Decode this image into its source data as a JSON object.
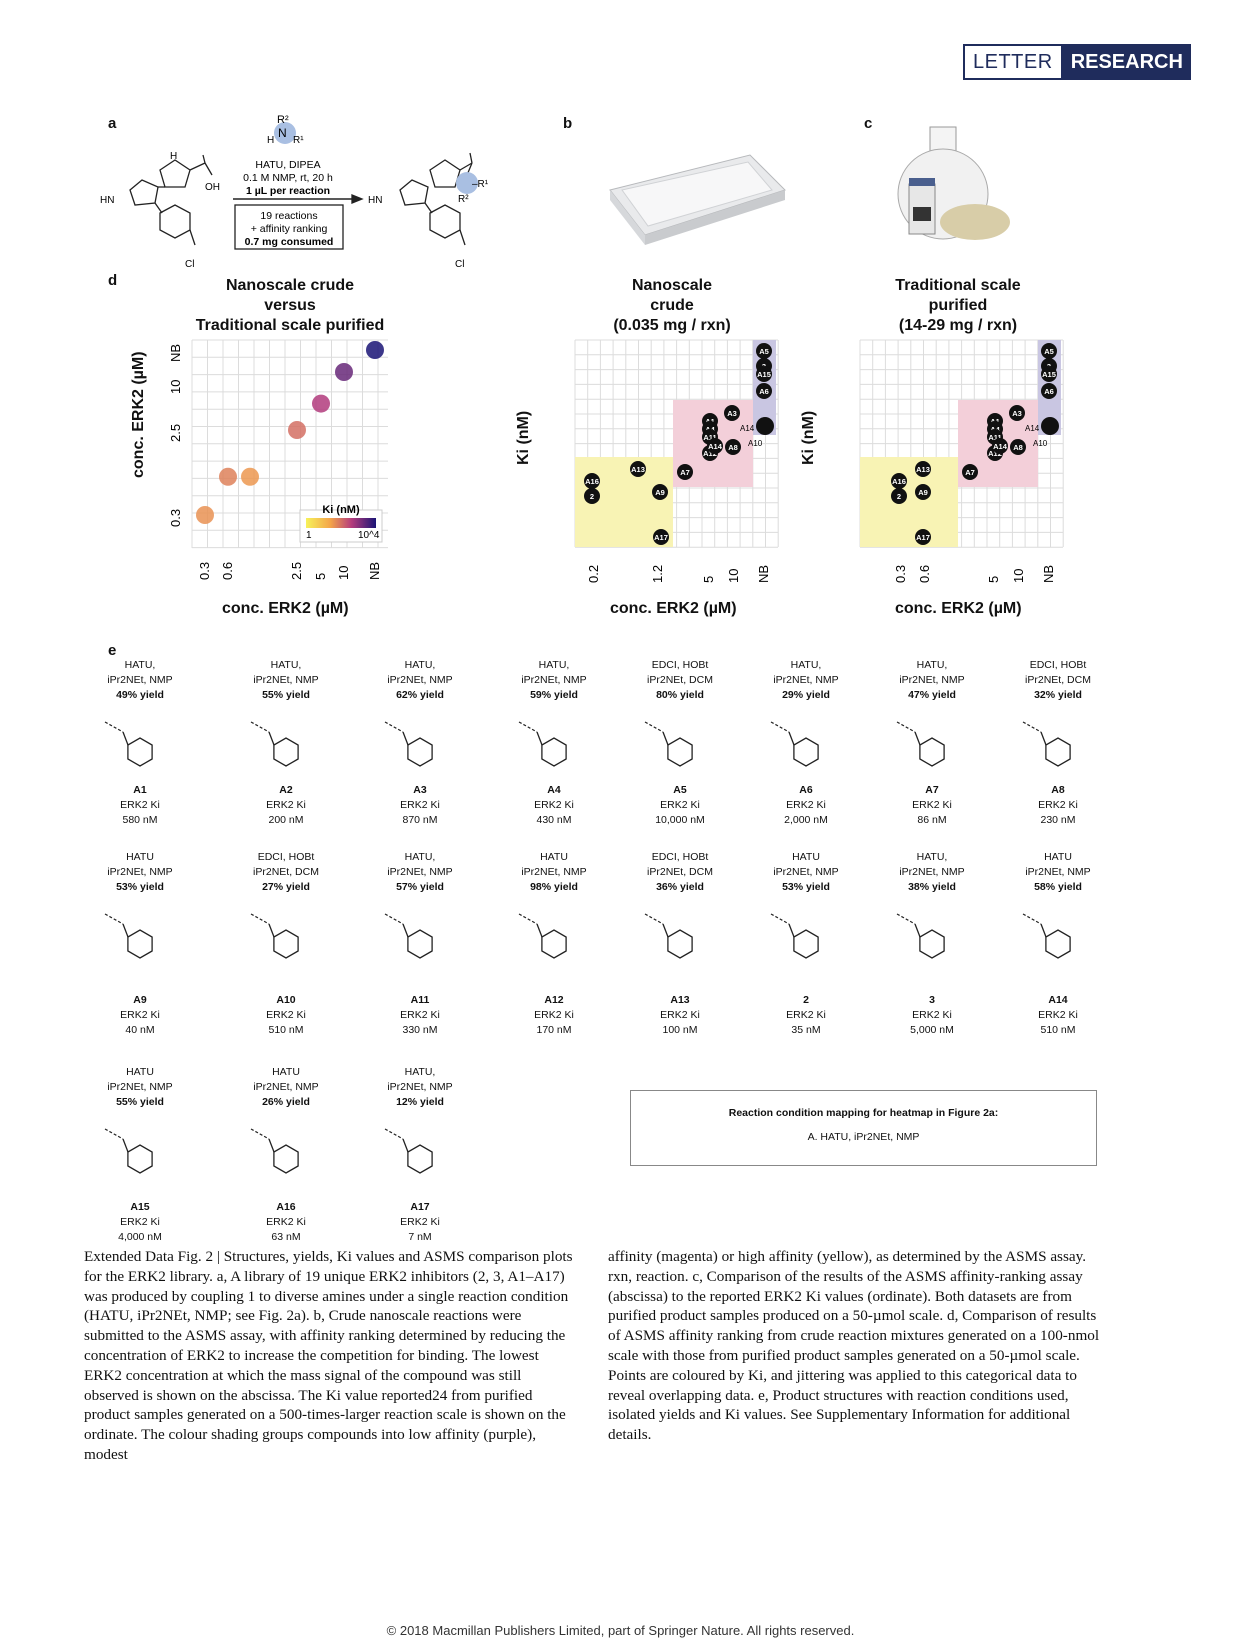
{
  "header": {
    "letter": "LETTER",
    "research": "RESEARCH"
  },
  "panel_labels": {
    "a": "a",
    "b": "b",
    "c": "c",
    "d": "d",
    "e": "e"
  },
  "scheme": {
    "reagent_top": "HATU, DIPEA",
    "reagent_mid": "0.1 M NMP, rt, 20 h",
    "reagent_bold": "1 µL per reaction",
    "box_line1": "19 reactions",
    "box_line2": "+ affinity ranking",
    "box_line3": "0.7 mg consumed"
  },
  "plot_titles": {
    "d": [
      "Nanoscale crude",
      "versus",
      "Traditional scale purified"
    ],
    "b": [
      "Nanoscale",
      "crude",
      "(0.035 mg / rxn)"
    ],
    "c": [
      "Traditional scale",
      "purified",
      "(14-29 mg / rxn)"
    ]
  },
  "axis_labels": {
    "d_y": "conc. ERK2 (µM)",
    "d_x": "conc. ERK2 (µM)",
    "b_y": "Ki (nM)",
    "b_x": "conc. ERK2 (µM)",
    "c_y": "Ki (nM)",
    "c_x": "conc. ERK2 (µM)",
    "legend_title": "Ki (nM)",
    "legend_min": "1",
    "legend_max": "10^4"
  },
  "chart_data": [
    {
      "type": "scatter",
      "title": "Nanoscale crude versus Traditional scale purified",
      "xlabel": "conc. ERK2 (µM)",
      "ylabel": "conc. ERK2 (µM)",
      "x_ticks": [
        "0.3",
        "0.6",
        "2.5",
        "5",
        "10",
        "NB"
      ],
      "y_ticks": [
        "0.3",
        "2.5",
        "10",
        "NB"
      ],
      "points": [
        {
          "x": "0.3",
          "y": "0.3",
          "ki": 40
        },
        {
          "x": "0.6",
          "y": "0.6",
          "ki": 63
        },
        {
          "x": "0.6",
          "y": "0.6",
          "ki": 35
        },
        {
          "x": "2.5",
          "y": "2.5",
          "ki": 100
        },
        {
          "x": "5",
          "y": "5",
          "ki": 430
        },
        {
          "x": "10",
          "y": "10",
          "ki": 2000
        },
        {
          "x": "NB",
          "y": "NB",
          "ki": 10000
        }
      ],
      "legend": {
        "title": "Ki (nM)",
        "min": 1,
        "max": 10000
      }
    },
    {
      "type": "scatter",
      "title": "Nanoscale crude (0.035 mg / rxn)",
      "xlabel": "conc. ERK2 (µM)",
      "ylabel": "Ki (nM)",
      "x_ticks": [
        "0.2",
        "1.2",
        "5",
        "10",
        "NB"
      ],
      "y_ticks": [
        "7",
        "35",
        "170",
        "870",
        "5000"
      ],
      "points": [
        "A5",
        "3",
        "A15",
        "A6",
        "A3",
        "A1",
        "A4",
        "A11",
        "A12",
        "A14",
        "A8",
        "A10",
        "A13",
        "A7",
        "A16",
        "2",
        "A9",
        "A17"
      ]
    },
    {
      "type": "scatter",
      "title": "Traditional scale purified (14-29 mg / rxn)",
      "xlabel": "conc. ERK2 (µM)",
      "ylabel": "Ki (nM)",
      "x_ticks": [
        "0.3",
        "0.6",
        "5",
        "10",
        "NB"
      ],
      "y_ticks": [
        "7",
        "35",
        "170",
        "870",
        "5000"
      ],
      "points": [
        "A5",
        "3",
        "A15",
        "A6",
        "A3",
        "A1",
        "A4",
        "A11",
        "A12",
        "A14",
        "A8",
        "A10",
        "A13",
        "A7",
        "A16",
        "2",
        "A9",
        "A17"
      ]
    }
  ],
  "compounds_row1": [
    {
      "cond1": "HATU,",
      "cond2": "iPr2NEt, NMP",
      "yield": "49% yield",
      "id": "A1",
      "kilabel": "ERK2 Ki",
      "ki": "580 nM"
    },
    {
      "cond1": "HATU,",
      "cond2": "iPr2NEt, NMP",
      "yield": "55% yield",
      "id": "A2",
      "kilabel": "ERK2 Ki",
      "ki": "200 nM"
    },
    {
      "cond1": "HATU,",
      "cond2": "iPr2NEt, NMP",
      "yield": "62% yield",
      "id": "A3",
      "kilabel": "ERK2 Ki",
      "ki": "870 nM"
    },
    {
      "cond1": "HATU,",
      "cond2": "iPr2NEt, NMP",
      "yield": "59% yield",
      "id": "A4",
      "kilabel": "ERK2 Ki",
      "ki": "430 nM"
    },
    {
      "cond1": "EDCI, HOBt",
      "cond2": "iPr2NEt, DCM",
      "yield": "80% yield",
      "id": "A5",
      "kilabel": "ERK2 Ki",
      "ki": "10,000 nM"
    },
    {
      "cond1": "HATU,",
      "cond2": "iPr2NEt, NMP",
      "yield": "29% yield",
      "id": "A6",
      "kilabel": "ERK2 Ki",
      "ki": "2,000 nM"
    },
    {
      "cond1": "HATU,",
      "cond2": "iPr2NEt, NMP",
      "yield": "47% yield",
      "id": "A7",
      "kilabel": "ERK2 Ki",
      "ki": "86 nM"
    },
    {
      "cond1": "EDCI, HOBt",
      "cond2": "iPr2NEt, DCM",
      "yield": "32% yield",
      "id": "A8",
      "kilabel": "ERK2 Ki",
      "ki": "230 nM"
    }
  ],
  "compounds_row2": [
    {
      "cond1": "HATU",
      "cond2": "iPr2NEt, NMP",
      "yield": "53% yield",
      "id": "A9",
      "kilabel": "ERK2 Ki",
      "ki": "40 nM"
    },
    {
      "cond1": "EDCI, HOBt",
      "cond2": "iPr2NEt, DCM",
      "yield": "27% yield",
      "id": "A10",
      "kilabel": "ERK2 Ki",
      "ki": "510 nM"
    },
    {
      "cond1": "HATU,",
      "cond2": "iPr2NEt, NMP",
      "yield": "57% yield",
      "id": "A11",
      "kilabel": "ERK2 Ki",
      "ki": "330 nM"
    },
    {
      "cond1": "HATU",
      "cond2": "iPr2NEt, NMP",
      "yield": "98% yield",
      "id": "A12",
      "kilabel": "ERK2 Ki",
      "ki": "170 nM"
    },
    {
      "cond1": "EDCI, HOBt",
      "cond2": "iPr2NEt, DCM",
      "yield": "36% yield",
      "id": "A13",
      "kilabel": "ERK2 Ki",
      "ki": "100 nM"
    },
    {
      "cond1": "HATU",
      "cond2": "iPr2NEt, NMP",
      "yield": "53% yield",
      "id": "2",
      "kilabel": "ERK2 Ki",
      "ki": "35 nM"
    },
    {
      "cond1": "HATU,",
      "cond2": "iPr2NEt, NMP",
      "yield": "38% yield",
      "id": "3",
      "kilabel": "ERK2 Ki",
      "ki": "5,000 nM"
    },
    {
      "cond1": "HATU",
      "cond2": "iPr2NEt, NMP",
      "yield": "58% yield",
      "id": "A14",
      "kilabel": "ERK2 Ki",
      "ki": "510 nM"
    }
  ],
  "compounds_row3": [
    {
      "cond1": "HATU",
      "cond2": "iPr2NEt, NMP",
      "yield": "55% yield",
      "id": "A15",
      "kilabel": "ERK2 Ki",
      "ki": "4,000 nM"
    },
    {
      "cond1": "HATU",
      "cond2": "iPr2NEt, NMP",
      "yield": "26% yield",
      "id": "A16",
      "kilabel": "ERK2 Ki",
      "ki": "63 nM"
    },
    {
      "cond1": "HATU,",
      "cond2": "iPr2NEt, NMP",
      "yield": "12% yield",
      "id": "A17",
      "kilabel": "ERK2 Ki",
      "ki": "7 nM"
    }
  ],
  "mapping_box": {
    "title": "Reaction condition mapping for heatmap in Figure 2a:",
    "entry": "A. HATU, iPr2NEt, NMP"
  },
  "caption": {
    "left": "Extended Data Fig. 2 | Structures, yields, Ki values and ASMS comparison plots for the ERK2 library. a, A library of 19 unique ERK2 inhibitors (2, 3, A1–A17) was produced by coupling 1 to diverse amines under a single reaction condition (HATU, iPr2NEt, NMP; see Fig. 2a). b, Crude nanoscale reactions were submitted to the ASMS assay, with affinity ranking determined by reducing the concentration of ERK2 to increase the competition for binding. The lowest ERK2 concentration at which the mass signal of the compound was still observed is shown on the abscissa. The Ki value reported24 from purified product samples generated on a 500-times-larger reaction scale is shown on the ordinate. The colour shading groups compounds into low affinity (purple), modest",
    "right": "affinity (magenta) or high affinity (yellow), as determined by the ASMS assay. rxn, reaction. c, Comparison of the results of the ASMS affinity-ranking assay (abscissa) to the reported ERK2 Ki values (ordinate). Both datasets are from purified product samples produced on a 50-µmol scale. d, Comparison of results of ASMS affinity ranking from crude reaction mixtures generated on a 100-nmol scale with those from purified product samples generated on a 50-µmol scale. Points are coloured by Ki, and jittering was applied to this categorical data to reveal overlapping data. e, Product structures with reaction conditions used, isolated yields and Ki values. See Supplementary Information for additional details."
  },
  "footer": "© 2018 Macmillan Publishers Limited, part of Springer Nature. All rights reserved."
}
